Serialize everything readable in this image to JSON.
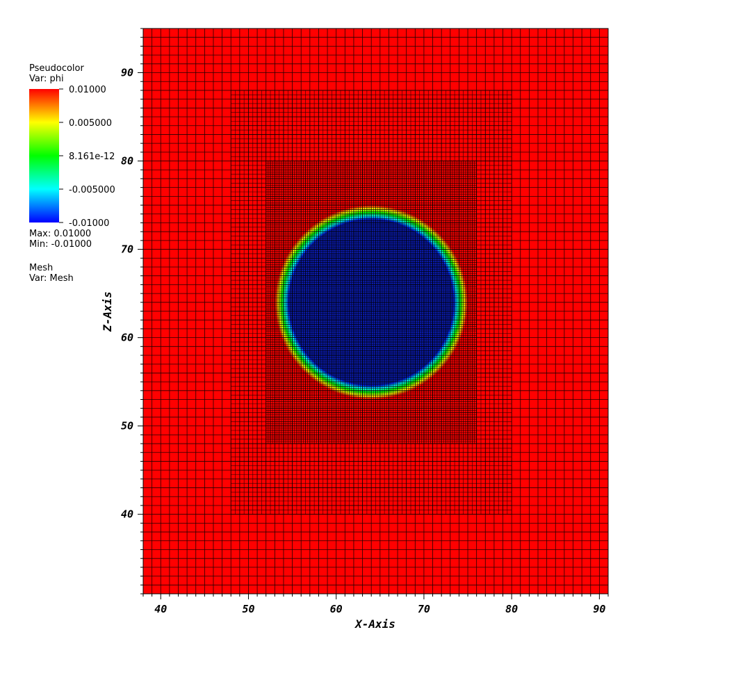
{
  "chart_data": {
    "type": "heatmap",
    "title": "",
    "xlabel": "X-Axis",
    "ylabel": "Z-Axis",
    "xlim": [
      38,
      91
    ],
    "ylim": [
      31,
      95
    ],
    "x_ticks": [
      40,
      50,
      60,
      70,
      80,
      90
    ],
    "y_ticks": [
      40,
      50,
      60,
      70,
      80,
      90
    ],
    "x_minor_step": 1,
    "y_minor_step": 1,
    "field": {
      "name": "phi",
      "shape": "circle",
      "center": [
        64,
        64
      ],
      "radius": 10.2,
      "interface_width": 1.6,
      "inside_value": -0.01,
      "outside_value": 0.01
    },
    "mesh_levels": [
      {
        "x_range": [
          38,
          91
        ],
        "y_range": [
          31,
          95
        ],
        "cell_size": 1.0
      },
      {
        "x_range": [
          48,
          80
        ],
        "y_range": [
          40,
          88
        ],
        "cell_size": 0.5
      },
      {
        "x_range": [
          52,
          76
        ],
        "y_range": [
          48,
          80
        ],
        "cell_size": 0.25
      }
    ],
    "legend": {
      "placement": "top-left",
      "plot_label": "Pseudocolor",
      "var_label": "Var: phi",
      "colorbar_ticks": [
        "0.01000",
        "0.005000",
        "8.161e-12",
        "-0.005000",
        "-0.01000"
      ],
      "colorbar_stops": [
        "#ff0000",
        "#ffff00",
        "#00ff00",
        "#00ffff",
        "#0000ff"
      ],
      "max_label": "Max:  0.01000",
      "min_label": "Min: -0.01000",
      "mesh_label": "Mesh",
      "mesh_var_label": "Var: Mesh"
    },
    "grid": true
  }
}
